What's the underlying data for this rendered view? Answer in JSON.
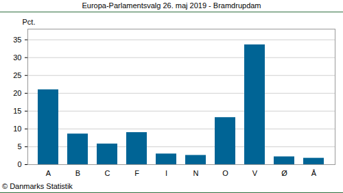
{
  "chart_data": {
    "type": "bar",
    "title": "Europa-Parlamentsvalg 26. maj 2019 - Bramdrupdam",
    "ylabel": "Pct.",
    "caption": "© Danmarks Statistik",
    "categories": [
      "A",
      "B",
      "C",
      "F",
      "I",
      "N",
      "O",
      "V",
      "Ø",
      "Å"
    ],
    "values": [
      21.0,
      8.6,
      5.8,
      9.0,
      3.0,
      2.6,
      13.2,
      33.6,
      2.2,
      1.8
    ],
    "color": "#006495",
    "ylim": [
      0,
      38
    ],
    "yticks": [
      0,
      5,
      10,
      15,
      20,
      25,
      30,
      35
    ],
    "grid": true
  }
}
